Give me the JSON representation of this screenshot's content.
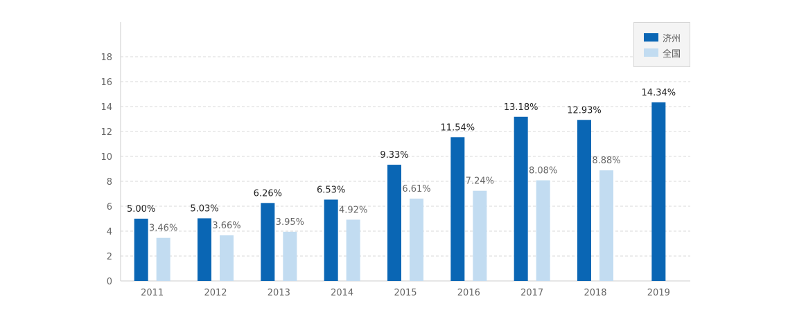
{
  "colors": {
    "jinan": "#0a66b4",
    "national": "#c2dcf1",
    "grid": "#d9d9d9",
    "axis": "#cccccc",
    "tick_text": "#666666",
    "label_dark": "#222222",
    "label_light": "#666666"
  },
  "legend": {
    "items": [
      {
        "label": "济州"
      },
      {
        "label": "全国"
      }
    ]
  },
  "chart_data": {
    "type": "bar",
    "categories": [
      "2011",
      "2012",
      "2013",
      "2014",
      "2015",
      "2016",
      "2017",
      "2018",
      "2019"
    ],
    "series": [
      {
        "name": "济州",
        "values": [
          5.0,
          5.03,
          6.26,
          6.53,
          9.33,
          11.54,
          13.18,
          12.93,
          14.34
        ],
        "labels": [
          "5.00%",
          "5.03%",
          "6.26%",
          "6.53%",
          "9.33%",
          "11.54%",
          "13.18%",
          "12.93%",
          "14.34%"
        ]
      },
      {
        "name": "全国",
        "values": [
          3.46,
          3.66,
          3.95,
          4.92,
          6.61,
          7.24,
          8.08,
          8.88,
          null
        ],
        "labels": [
          "3.46%",
          "3.66%",
          "3.95%",
          "4.92%",
          "6.61%",
          "7.24%",
          "8.08%",
          "8.88%",
          ""
        ]
      }
    ],
    "title": "",
    "xlabel": "",
    "ylabel": "",
    "ylim": [
      0,
      20
    ],
    "yticks": [
      "0",
      "2",
      "4",
      "6",
      "8",
      "10",
      "12",
      "14",
      "16",
      "18"
    ],
    "grid": true,
    "legend_position": "top-right"
  }
}
